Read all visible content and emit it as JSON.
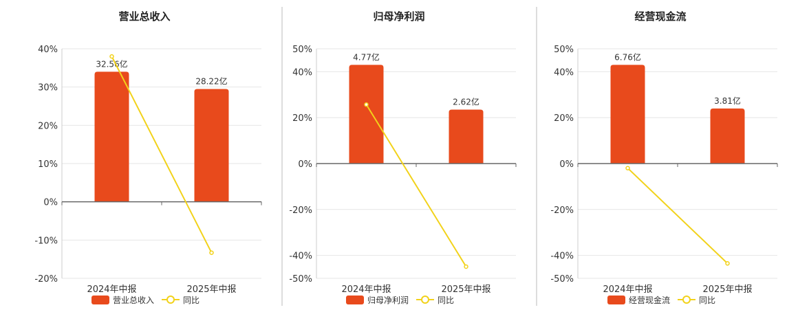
{
  "chart_data": [
    {
      "type": "bar",
      "title": "营业总收入",
      "categories": [
        "2024年中报",
        "2025年中报"
      ],
      "series": [
        {
          "name": "营业总收入",
          "type": "bar",
          "values": [
            34,
            29.5
          ],
          "labels": [
            "32.56亿",
            "28.22亿"
          ]
        },
        {
          "name": "同比",
          "type": "line",
          "values": [
            38,
            -13.3
          ]
        }
      ],
      "yticks": [
        "40%",
        "30%",
        "20%",
        "10%",
        "0%",
        "-10%",
        "-20%"
      ],
      "ylim": [
        -20,
        40
      ],
      "colors": {
        "bar": "#e84a1c",
        "line": "#f2d21a"
      }
    },
    {
      "type": "bar",
      "title": "归母净利润",
      "categories": [
        "2024年中报",
        "2025年中报"
      ],
      "series": [
        {
          "name": "归母净利润",
          "type": "bar",
          "values": [
            43,
            23.5
          ],
          "labels": [
            "4.77亿",
            "2.62亿"
          ]
        },
        {
          "name": "同比",
          "type": "line",
          "values": [
            25.7,
            -44.9
          ]
        }
      ],
      "yticks": [
        "50%",
        "40%",
        "20%",
        "0%",
        "-20%",
        "-40%",
        "-50%"
      ],
      "ylim": [
        -50,
        50
      ],
      "colors": {
        "bar": "#e84a1c",
        "line": "#f2d21a"
      }
    },
    {
      "type": "bar",
      "title": "经营现金流",
      "categories": [
        "2024年中报",
        "2025年中报"
      ],
      "series": [
        {
          "name": "经营现金流",
          "type": "bar",
          "values": [
            43,
            24
          ],
          "labels": [
            "6.76亿",
            "3.81亿"
          ]
        },
        {
          "name": "同比",
          "type": "line",
          "values": [
            -2,
            -43.5
          ]
        }
      ],
      "yticks": [
        "50%",
        "40%",
        "20%",
        "0%",
        "-20%",
        "-40%",
        "-50%"
      ],
      "ylim": [
        -50,
        50
      ],
      "colors": {
        "bar": "#e84a1c",
        "line": "#f2d21a"
      }
    }
  ]
}
